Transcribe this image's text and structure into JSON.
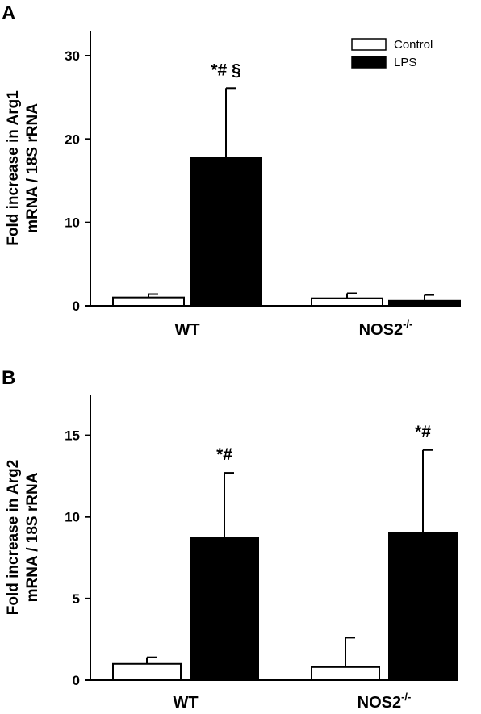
{
  "chart_data": [
    {
      "type": "bar",
      "panel_label": "A",
      "ylabel_line1": "Fold increase in Arg1",
      "ylabel_line2": "mRNA / 18S rRNA",
      "categories": [
        {
          "main": "WT",
          "sup": ""
        },
        {
          "main": "NOS2",
          "sup": "-/-"
        }
      ],
      "series": [
        {
          "name": "Control",
          "color": "#ffffff",
          "values": [
            1.0,
            0.9
          ],
          "errors": [
            0.4,
            0.6
          ]
        },
        {
          "name": "LPS",
          "color": "#000000",
          "values": [
            17.8,
            0.6
          ],
          "errors": [
            8.3,
            0.7
          ]
        }
      ],
      "annotations": [
        {
          "category": 0,
          "series": 1,
          "text": "*# §"
        }
      ],
      "ylim": [
        0,
        33
      ],
      "yticks": [
        0,
        10,
        20,
        30
      ],
      "legend": "top-right"
    },
    {
      "type": "bar",
      "panel_label": "B",
      "ylabel_line1": "Fold increase in Arg2",
      "ylabel_line2": "mRNA / 18S rRNA",
      "categories": [
        {
          "main": "WT",
          "sup": ""
        },
        {
          "main": "NOS2",
          "sup": "-/-"
        }
      ],
      "series": [
        {
          "name": "Control",
          "color": "#ffffff",
          "values": [
            1.0,
            0.8
          ],
          "errors": [
            0.4,
            1.8
          ]
        },
        {
          "name": "LPS",
          "color": "#000000",
          "values": [
            8.7,
            9.0
          ],
          "errors": [
            4.0,
            5.1
          ]
        }
      ],
      "annotations": [
        {
          "category": 0,
          "series": 1,
          "text": "*#"
        },
        {
          "category": 1,
          "series": 1,
          "text": "*#"
        }
      ],
      "ylim": [
        0,
        17.5
      ],
      "yticks": [
        0,
        5,
        10,
        15
      ],
      "legend": "none"
    }
  ]
}
